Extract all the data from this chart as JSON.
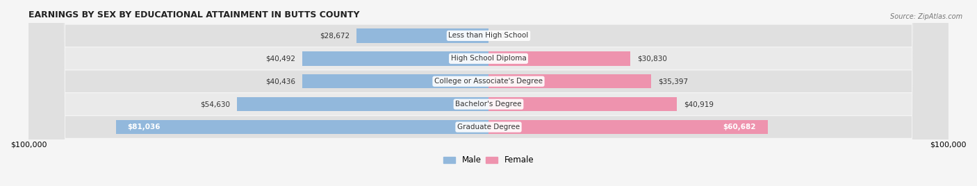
{
  "title": "EARNINGS BY SEX BY EDUCATIONAL ATTAINMENT IN BUTTS COUNTY",
  "source": "Source: ZipAtlas.com",
  "categories": [
    "Less than High School",
    "High School Diploma",
    "College or Associate's Degree",
    "Bachelor's Degree",
    "Graduate Degree"
  ],
  "male_values": [
    28672,
    40492,
    40436,
    54630,
    81036
  ],
  "female_values": [
    0,
    30830,
    35397,
    40919,
    60682
  ],
  "male_color": "#92b8dc",
  "female_color": "#ee93ae",
  "row_bg_color_odd": "#eaeaea",
  "row_bg_color_even": "#e0e0e0",
  "xlim": 100000,
  "xlabel_left": "$100,000",
  "xlabel_right": "$100,000",
  "bar_height": 0.62,
  "background_color": "#f5f5f5"
}
